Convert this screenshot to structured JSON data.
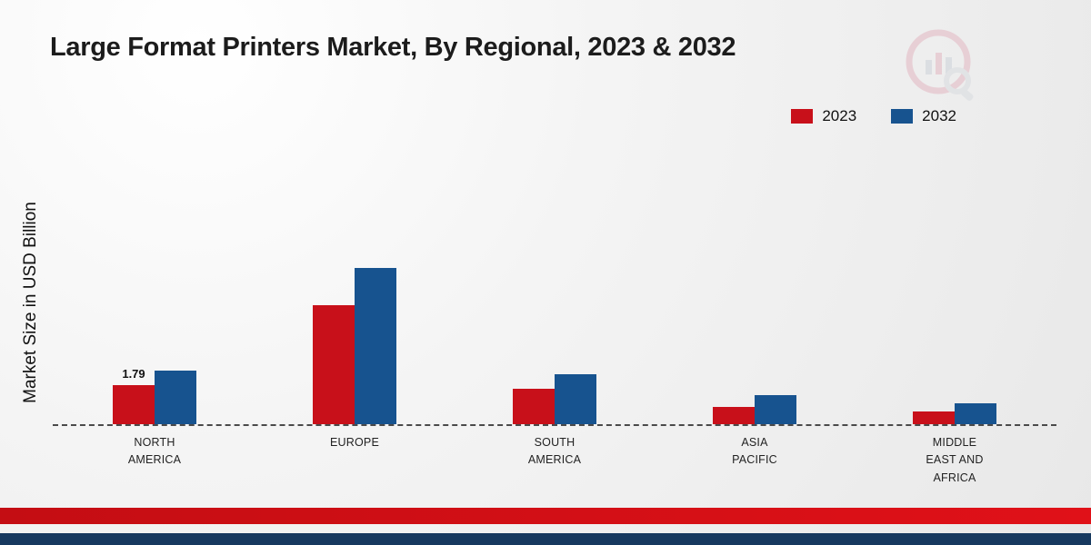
{
  "title": "Large Format Printers Market, By Regional, 2023 & 2032",
  "y_axis_label": "Market Size in USD Billion",
  "colors": {
    "series_2023": "#c8101a",
    "series_2032": "#17538f",
    "footer_red": "#d3101a",
    "footer_navy": "#17395f"
  },
  "chart_data": {
    "type": "bar",
    "title": "Large Format Printers Market, By Regional, 2023 & 2032",
    "ylabel": "Market Size in USD Billion",
    "categories": [
      "NORTH AMERICA",
      "EUROPE",
      "SOUTH AMERICA",
      "ASIA PACIFIC",
      "MIDDLE EAST AND AFRICA"
    ],
    "series": [
      {
        "name": "2023",
        "color": "#c8101a",
        "values": [
          1.79,
          5.45,
          1.62,
          0.8,
          0.58
        ]
      },
      {
        "name": "2032",
        "color": "#17538f",
        "values": [
          2.45,
          7.15,
          2.3,
          1.33,
          0.96
        ]
      }
    ],
    "annotations": [
      {
        "category": "NORTH AMERICA",
        "series": "2023",
        "text": "1.79"
      }
    ],
    "ylim": [
      0,
      8
    ],
    "grid": false,
    "legend_position": "top-right",
    "baseline": "dashed"
  }
}
